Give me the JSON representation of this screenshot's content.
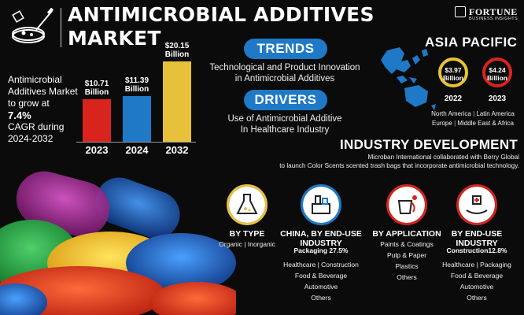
{
  "header": {
    "title_line1": "ANTIMICROBIAL ADDITIVES",
    "title_line2": "MARKET",
    "brand_name": "FORTUNE",
    "brand_sub": "BUSINESS INSIGHTS"
  },
  "summary": {
    "line1": "Antimicrobial",
    "line2": "Additives Market",
    "line3": "to grow at",
    "cagr": "7.4%",
    "line4": "CAGR during",
    "line5": "2024-2032"
  },
  "chart_data": {
    "type": "bar",
    "categories": [
      "2023",
      "2024",
      "2032"
    ],
    "values": [
      10.71,
      11.39,
      20.15
    ],
    "value_labels": [
      "$10.71 Billion",
      "$11.39 Billion",
      "$20.15 Billion"
    ],
    "colors": [
      "#d9231d",
      "#1f79c6",
      "#e8c13a"
    ]
  },
  "trends": {
    "label": "TRENDS",
    "text_line1": "Technological and Product Innovation",
    "text_line2": "in Antimicrobial Additives"
  },
  "drivers": {
    "label": "DRIVERS",
    "text_line1": "Use of Antimicrobial Additive",
    "text_line2": "In Healthcare Industry"
  },
  "asia_pacific": {
    "title": "ASIA PACIFIC",
    "value_2022_amount": "$3.97",
    "value_2022_unit": "Billion",
    "year_2022": "2022",
    "value_2023_amount": "$4.24",
    "value_2023_unit": "Billion",
    "year_2023": "2023",
    "ring_colors": [
      "#e8c13a",
      "#d9231d"
    ],
    "regions_line1_a": "North America",
    "regions_line1_b": "Latin America",
    "regions_line2_a": "Europe",
    "regions_line2_b": "Middle East & Africa"
  },
  "industry_development": {
    "title": "INDUSTRY DEVELOPMENT",
    "text_line1": "Microban International collaborated with Berry Global",
    "text_line2": "to launch Color Scents scented trash bags that incorporate antimicrobial technology."
  },
  "categories": [
    {
      "icon": "lab-flask-icon",
      "title_line1": "BY TYPE",
      "title_line2": "",
      "highlight": "",
      "items": [
        "Organic | Inorganic"
      ],
      "color": "#e8c13a"
    },
    {
      "icon": "factory-products-icon",
      "title_line1": "CHINA, BY END-USE",
      "title_line2": "INDUSTRY",
      "highlight": "Packaging 27.5%",
      "items": [
        "Healthcare | Construction",
        "Food & Beverage",
        "Automotive",
        "Others"
      ],
      "color": "#1f79c6"
    },
    {
      "icon": "paint-bucket-icon",
      "title_line1": "BY APPLICATION",
      "title_line2": "",
      "highlight": "",
      "items": [
        "Paints & Coatings",
        "Pulp & Paper",
        "Plastics",
        "Others"
      ],
      "color": "#d9231d"
    },
    {
      "icon": "medical-hands-icon",
      "title_line1": "BY END-USE",
      "title_line2": "INDUSTRY",
      "highlight": "Construction12.8%",
      "items": [
        "Healthcare | Packaging",
        "Food & Beverage",
        "Automotive",
        "Others"
      ],
      "color": "#d9231d"
    }
  ]
}
